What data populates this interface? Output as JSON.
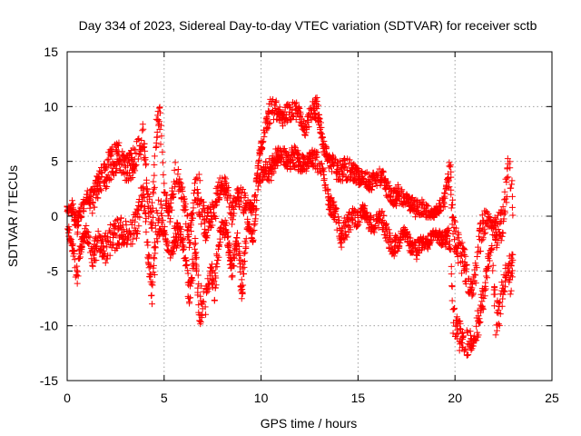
{
  "chart_data": {
    "type": "scatter",
    "title": "Day 334 of 2023, Sidereal Day-to-day VTEC variation (SDTVAR) for receiver sctb",
    "xlabel": "GPS time / hours",
    "ylabel": "SDTVAR / TECUs",
    "xlim": [
      0,
      25
    ],
    "ylim": [
      -15,
      15
    ],
    "xticks": [
      0,
      5,
      10,
      15,
      20,
      25
    ],
    "yticks": [
      -15,
      -10,
      -5,
      0,
      5,
      10,
      15
    ],
    "xtick_labels": [
      "0",
      "5",
      "10",
      "15",
      "20",
      "25"
    ],
    "ytick_labels": [
      "-15",
      "-10",
      "-5",
      "0",
      "5",
      "10",
      "15"
    ],
    "grid": true,
    "marker": "+",
    "marker_color": "#ff0000",
    "series": [
      {
        "name": "SDTVAR",
        "envelope": [
          {
            "x": 0.0,
            "low": -1.0,
            "high": 1.0
          },
          {
            "x": 0.3,
            "low": -4.0,
            "high": 1.5
          },
          {
            "x": 0.5,
            "low": -6.5,
            "high": 0.0
          },
          {
            "x": 0.7,
            "low": -3.5,
            "high": 1.0
          },
          {
            "x": 1.0,
            "low": -2.0,
            "high": 2.5
          },
          {
            "x": 1.3,
            "low": -5.0,
            "high": 2.5
          },
          {
            "x": 1.6,
            "low": -3.5,
            "high": 4.0
          },
          {
            "x": 2.0,
            "low": -4.5,
            "high": 5.5
          },
          {
            "x": 2.3,
            "low": -3.5,
            "high": 6.5
          },
          {
            "x": 2.6,
            "low": -3.0,
            "high": 7.0
          },
          {
            "x": 3.0,
            "low": -2.5,
            "high": 5.5
          },
          {
            "x": 3.3,
            "low": -3.0,
            "high": 6.0
          },
          {
            "x": 3.6,
            "low": -2.0,
            "high": 7.0
          },
          {
            "x": 3.9,
            "low": 1.5,
            "high": 8.5
          },
          {
            "x": 4.2,
            "low": -5.0,
            "high": 2.0
          },
          {
            "x": 4.4,
            "low": -8.5,
            "high": 1.5
          },
          {
            "x": 4.6,
            "low": -3.0,
            "high": 9.5
          },
          {
            "x": 4.8,
            "low": -1.5,
            "high": 10.5
          },
          {
            "x": 5.0,
            "low": -2.0,
            "high": 3.0
          },
          {
            "x": 5.3,
            "low": -4.5,
            "high": 1.0
          },
          {
            "x": 5.6,
            "low": -3.0,
            "high": 5.5
          },
          {
            "x": 5.9,
            "low": -2.5,
            "high": 3.0
          },
          {
            "x": 6.1,
            "low": -5.0,
            "high": 1.5
          },
          {
            "x": 6.3,
            "low": -8.5,
            "high": -1.0
          },
          {
            "x": 6.6,
            "low": -4.0,
            "high": 3.5
          },
          {
            "x": 6.8,
            "low": -10.5,
            "high": 4.0
          },
          {
            "x": 7.1,
            "low": -9.5,
            "high": 0.5
          },
          {
            "x": 7.4,
            "low": -6.0,
            "high": 1.0
          },
          {
            "x": 7.6,
            "low": -8.0,
            "high": 2.0
          },
          {
            "x": 7.9,
            "low": -2.5,
            "high": 4.0
          },
          {
            "x": 8.2,
            "low": -2.0,
            "high": 3.5
          },
          {
            "x": 8.5,
            "low": -6.0,
            "high": 1.5
          },
          {
            "x": 8.8,
            "low": -2.5,
            "high": 3.0
          },
          {
            "x": 9.0,
            "low": -8.5,
            "high": 3.5
          },
          {
            "x": 9.3,
            "low": -1.0,
            "high": 1.5
          },
          {
            "x": 9.6,
            "low": -2.5,
            "high": 1.0
          },
          {
            "x": 9.9,
            "low": 3.0,
            "high": 6.0
          },
          {
            "x": 10.2,
            "low": 3.5,
            "high": 8.5
          },
          {
            "x": 10.5,
            "low": 3.0,
            "high": 11.0
          },
          {
            "x": 10.8,
            "low": 4.5,
            "high": 10.5
          },
          {
            "x": 11.1,
            "low": 5.0,
            "high": 9.5
          },
          {
            "x": 11.4,
            "low": 4.0,
            "high": 10.5
          },
          {
            "x": 11.7,
            "low": 4.5,
            "high": 11.0
          },
          {
            "x": 12.0,
            "low": 4.0,
            "high": 10.0
          },
          {
            "x": 12.3,
            "low": 4.0,
            "high": 8.5
          },
          {
            "x": 12.6,
            "low": 4.5,
            "high": 10.5
          },
          {
            "x": 12.9,
            "low": 4.0,
            "high": 11.0
          },
          {
            "x": 13.2,
            "low": 3.5,
            "high": 7.0
          },
          {
            "x": 13.5,
            "low": 0.5,
            "high": 6.0
          },
          {
            "x": 13.8,
            "low": -0.5,
            "high": 5.5
          },
          {
            "x": 14.1,
            "low": -3.0,
            "high": 5.0
          },
          {
            "x": 14.4,
            "low": -2.0,
            "high": 5.5
          },
          {
            "x": 14.7,
            "low": -1.0,
            "high": 5.0
          },
          {
            "x": 15.0,
            "low": -1.0,
            "high": 4.5
          },
          {
            "x": 15.3,
            "low": 0.0,
            "high": 4.0
          },
          {
            "x": 15.6,
            "low": -1.5,
            "high": 4.0
          },
          {
            "x": 15.9,
            "low": -1.5,
            "high": 4.0
          },
          {
            "x": 16.2,
            "low": -1.0,
            "high": 4.5
          },
          {
            "x": 16.5,
            "low": -2.5,
            "high": 3.5
          },
          {
            "x": 16.8,
            "low": -4.0,
            "high": 2.5
          },
          {
            "x": 17.1,
            "low": -3.0,
            "high": 3.0
          },
          {
            "x": 17.4,
            "low": -2.0,
            "high": 2.0
          },
          {
            "x": 17.7,
            "low": -3.5,
            "high": 2.0
          },
          {
            "x": 18.0,
            "low": -4.0,
            "high": 1.5
          },
          {
            "x": 18.3,
            "low": -3.0,
            "high": 1.5
          },
          {
            "x": 18.6,
            "low": -3.0,
            "high": 1.0
          },
          {
            "x": 18.9,
            "low": -2.0,
            "high": 0.5
          },
          {
            "x": 19.2,
            "low": -2.5,
            "high": 1.5
          },
          {
            "x": 19.5,
            "low": -3.0,
            "high": 2.5
          },
          {
            "x": 19.75,
            "low": -3.5,
            "high": 5.5
          },
          {
            "x": 19.9,
            "low": -11.5,
            "high": 1.0
          },
          {
            "x": 20.1,
            "low": -12.5,
            "high": -1.0
          },
          {
            "x": 20.3,
            "low": -13.0,
            "high": -2.0
          },
          {
            "x": 20.5,
            "low": -12.5,
            "high": -3.0
          },
          {
            "x": 20.7,
            "low": -13.0,
            "high": -5.0
          },
          {
            "x": 20.9,
            "low": -12.0,
            "high": -6.0
          },
          {
            "x": 21.1,
            "low": -11.5,
            "high": -3.5
          },
          {
            "x": 21.3,
            "low": -10.5,
            "high": -0.5
          },
          {
            "x": 21.5,
            "low": -8.0,
            "high": 1.0
          },
          {
            "x": 21.7,
            "low": -5.0,
            "high": 0.5
          },
          {
            "x": 21.9,
            "low": -3.5,
            "high": -0.5
          },
          {
            "x": 22.1,
            "low": -11.0,
            "high": 0.0
          },
          {
            "x": 22.3,
            "low": -10.5,
            "high": 0.5
          },
          {
            "x": 22.5,
            "low": -7.5,
            "high": 1.0
          },
          {
            "x": 22.7,
            "low": -6.0,
            "high": 5.5
          },
          {
            "x": 22.9,
            "low": -7.5,
            "high": 6.0
          },
          {
            "x": 23.0,
            "low": -5.0,
            "high": 0.5
          }
        ]
      }
    ]
  }
}
